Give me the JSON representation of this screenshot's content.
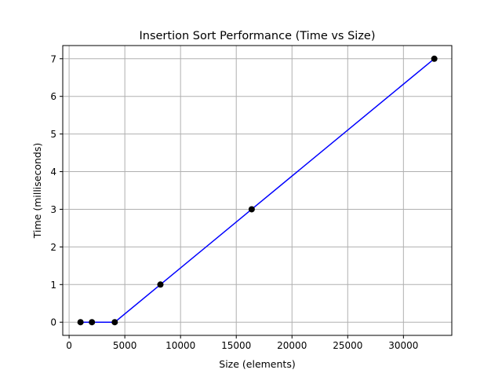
{
  "chart_data": {
    "type": "line",
    "title": "Insertion Sort Performance (Time vs Size)",
    "xlabel": "Size (elements)",
    "ylabel": "Time (milliseconds)",
    "x_ticks": [
      0,
      5000,
      10000,
      15000,
      20000,
      25000,
      30000
    ],
    "y_ticks": [
      0,
      1,
      2,
      3,
      4,
      5,
      6,
      7
    ],
    "xlim": [
      -570,
      34340
    ],
    "ylim": [
      -0.35,
      7.35
    ],
    "grid": true,
    "series": [
      {
        "x": [
          1024,
          2048,
          4096,
          8192,
          16384,
          32768
        ],
        "y": [
          0,
          0,
          0,
          1,
          3,
          7
        ],
        "line_color": "#0000ff",
        "marker_color": "#000000"
      }
    ]
  }
}
